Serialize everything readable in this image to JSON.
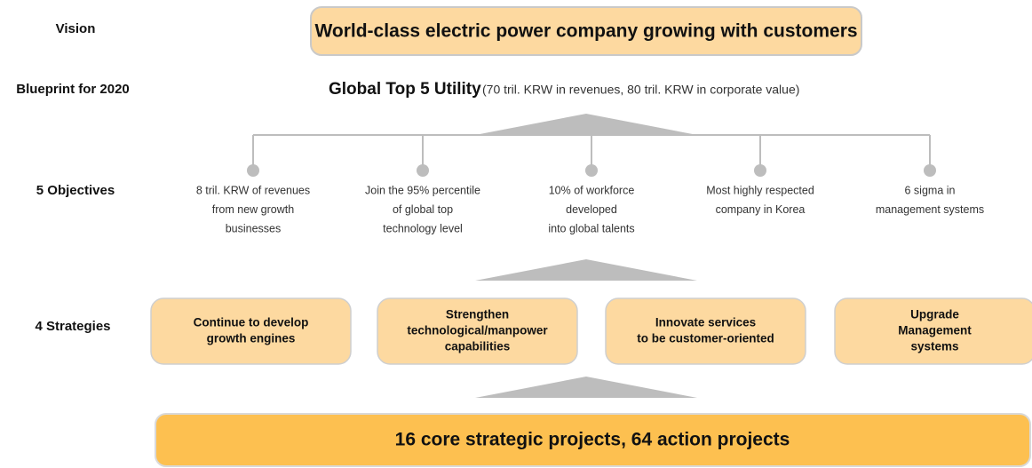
{
  "labels": {
    "vision": "Vision",
    "blueprint": "Blueprint for 2020",
    "objectives": "5 Objectives",
    "strategies": "4 Strategies"
  },
  "vision": "World-class electric power company growing with customers",
  "blueprint": {
    "title": "Global Top 5 Utility",
    "detail": "(70 tril. KRW in revenues, 80 tril. KRW in corporate value)"
  },
  "objectives": [
    [
      "8 tril. KRW of revenues",
      "from new growth",
      "businesses"
    ],
    [
      "Join the 95% percentile",
      "of global top",
      "technology level"
    ],
    [
      "10% of workforce",
      "developed",
      "into global talents"
    ],
    [
      "Most highly respected",
      "company in Korea"
    ],
    [
      "6 sigma in",
      "management systems"
    ]
  ],
  "strategies": [
    [
      "Continue to develop",
      "growth engines"
    ],
    [
      "Strengthen",
      "technological/manpower",
      "capabilities"
    ],
    [
      "Innovate services",
      "to be customer-oriented"
    ],
    [
      "Upgrade",
      "Management",
      "systems"
    ]
  ],
  "projects": "16 core strategic projects, 64 action projects"
}
